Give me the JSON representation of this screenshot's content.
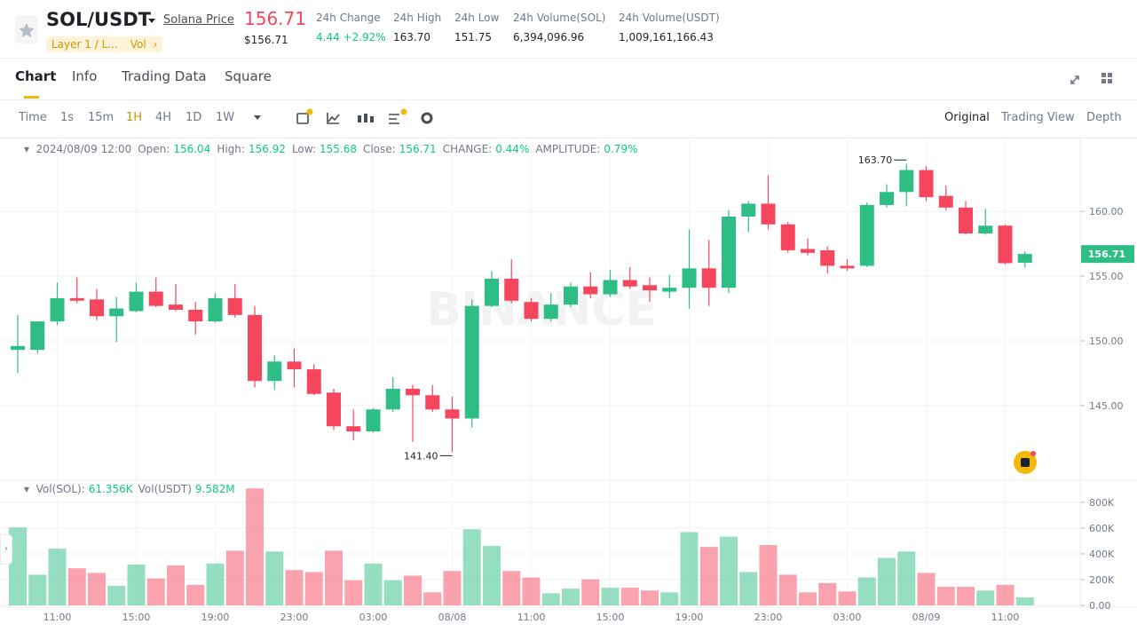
{
  "header": {
    "symbol": "SOL/USDT",
    "link": "Solana Price",
    "price": "156.71",
    "price_usd": "$156.71",
    "tags": [
      "Layer 1 / L...",
      "Vol"
    ],
    "stats": [
      {
        "label": "24h Change",
        "value": "4.44 +2.92%"
      },
      {
        "label": "24h High",
        "value": "163.70"
      },
      {
        "label": "24h Low",
        "value": "151.75"
      },
      {
        "label": "24h Volume(SOL)",
        "value": "6,394,096.96"
      },
      {
        "label": "24h Volume(USDT)",
        "value": "1,009,161,166.43"
      }
    ]
  },
  "tabs": [
    "Chart",
    "Info",
    "Trading Data",
    "Square"
  ],
  "intervals": [
    "Time",
    "1s",
    "15m",
    "1H",
    "4H",
    "1D",
    "1W"
  ],
  "views": [
    "Original",
    "Trading View",
    "Depth"
  ],
  "info": {
    "date": "2024/08/09 12:00",
    "fields": [
      {
        "label": "Open:",
        "value": "156.04"
      },
      {
        "label": "High:",
        "value": "156.92"
      },
      {
        "label": "Low:",
        "value": "155.68"
      },
      {
        "label": "Close:",
        "value": "156.71"
      },
      {
        "label": "CHANGE:",
        "value": "0.44%"
      },
      {
        "label": "AMPLITUDE:",
        "value": "0.79%"
      }
    ]
  },
  "volume_info": [
    {
      "label": "Vol(SOL):",
      "value": "61.356K"
    },
    {
      "label": "Vol(USDT)",
      "value": "9.582M"
    }
  ],
  "watermark": "BINANCE",
  "chart_data": {
    "type": "candlestick",
    "categories": [
      null,
      null,
      "11:00",
      null,
      null,
      null,
      "15:00",
      null,
      null,
      null,
      "19:00",
      null,
      null,
      null,
      "23:00",
      null,
      null,
      null,
      "03:00",
      null,
      null,
      null,
      "08/08",
      null,
      null,
      null,
      "11:00",
      null,
      null,
      null,
      "15:00",
      null,
      null,
      null,
      "19:00",
      null,
      null,
      null,
      "23:00",
      null,
      null,
      null,
      "03:00",
      null,
      null,
      null,
      "08/09",
      null,
      null,
      null,
      "11:00",
      null
    ],
    "open": [
      149.3,
      149.3,
      151.5,
      153.3,
      153.2,
      151.9,
      152.3,
      153.8,
      152.8,
      152.4,
      151.5,
      153.3,
      152.0,
      146.9,
      148.4,
      147.8,
      146.0,
      143.4,
      143.0,
      144.7,
      146.3,
      145.8,
      144.7,
      144.0,
      152.7,
      154.8,
      153.0,
      151.7,
      152.8,
      154.2,
      153.6,
      154.7,
      154.3,
      153.8,
      154.1,
      155.6,
      154.1,
      159.6,
      160.6,
      159.0,
      157.1,
      157.0,
      155.8,
      155.8,
      160.5,
      161.5,
      163.2,
      161.2,
      160.3,
      158.3,
      158.9,
      156.04
    ],
    "high": [
      152.0,
      151.5,
      154.5,
      154.9,
      154.0,
      153.4,
      154.5,
      154.9,
      154.4,
      153.0,
      153.7,
      154.4,
      152.7,
      148.9,
      149.4,
      148.2,
      146.3,
      144.7,
      144.8,
      147.2,
      146.6,
      146.6,
      145.7,
      153.2,
      155.4,
      156.3,
      153.3,
      153.7,
      154.5,
      155.3,
      155.5,
      155.7,
      154.9,
      155.1,
      158.6,
      157.8,
      160.1,
      160.8,
      162.8,
      159.2,
      157.9,
      157.3,
      156.3,
      160.7,
      162.1,
      163.7,
      163.5,
      162.0,
      160.8,
      160.2,
      159.0,
      156.92
    ],
    "low": [
      147.5,
      149.0,
      151.2,
      152.9,
      151.6,
      149.9,
      152.2,
      152.6,
      152.3,
      150.5,
      151.4,
      151.8,
      146.4,
      146.2,
      146.4,
      145.8,
      143.1,
      142.3,
      142.9,
      144.5,
      142.2,
      144.5,
      141.4,
      143.3,
      152.6,
      152.9,
      151.5,
      151.5,
      152.6,
      153.3,
      153.4,
      154.0,
      153.0,
      153.3,
      152.5,
      152.7,
      153.7,
      158.4,
      158.6,
      156.8,
      156.6,
      155.2,
      155.4,
      155.7,
      160.3,
      160.4,
      160.8,
      160.1,
      158.2,
      158.2,
      155.9,
      155.68
    ],
    "close": [
      149.6,
      151.5,
      153.3,
      153.1,
      151.9,
      152.5,
      153.8,
      152.7,
      152.4,
      151.5,
      153.3,
      152.0,
      146.9,
      148.4,
      147.8,
      145.9,
      143.4,
      143.0,
      144.7,
      146.3,
      145.8,
      144.7,
      144.0,
      152.7,
      154.8,
      153.1,
      151.7,
      152.8,
      154.2,
      153.6,
      154.7,
      154.2,
      153.9,
      154.1,
      155.6,
      154.1,
      159.6,
      160.6,
      159.0,
      157.0,
      156.8,
      155.8,
      155.6,
      160.5,
      161.5,
      163.2,
      161.1,
      160.3,
      158.3,
      158.9,
      156.0,
      156.71
    ],
    "volume": [
      605,
      238,
      440,
      288,
      252,
      151,
      317,
      209,
      310,
      159,
      324,
      425,
      908,
      418,
      274,
      259,
      425,
      195,
      324,
      195,
      231,
      101,
      267,
      591,
      461,
      267,
      216,
      94,
      130,
      202,
      137,
      137,
      115,
      101,
      569,
      454,
      533,
      259,
      468,
      238,
      101,
      173,
      108,
      216,
      368,
      418,
      252,
      144,
      144,
      115,
      159,
      61.356
    ],
    "up_color": "#2ebd85",
    "down_color": "#f6465d",
    "ylim": [
      139.3,
      165.5
    ],
    "yticks": [
      {
        "value": 145,
        "label": "145.00"
      },
      {
        "value": 150,
        "label": "150.00"
      },
      {
        "value": 155,
        "label": "155.00"
      },
      {
        "value": 160,
        "label": "160.00"
      }
    ],
    "volume_ylim": [
      0,
      944
    ],
    "volume_ticks": [
      {
        "value": 0,
        "label": "0.00"
      },
      {
        "value": 200,
        "label": "200K"
      },
      {
        "value": 400,
        "label": "400K"
      },
      {
        "value": 600,
        "label": "600K"
      },
      {
        "value": 800,
        "label": "800K"
      }
    ],
    "annotations": [
      {
        "value": 163.7,
        "label": "163.70"
      },
      {
        "value": 141.4,
        "label": "141.40"
      }
    ],
    "last_price": {
      "value": 156.71,
      "label": "156.71"
    },
    "grid": true
  }
}
